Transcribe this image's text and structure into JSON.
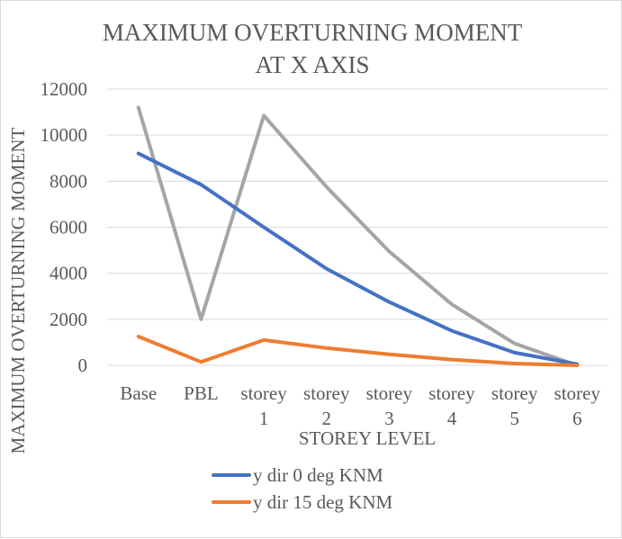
{
  "chart_data": {
    "type": "line",
    "title": [
      "MAXIMUM OVERTURNING MOMENT",
      "AT X AXIS"
    ],
    "xlabel": "STOREY LEVEL",
    "ylabel": "MAXIMUM OVERTURNING MOMENT",
    "categories": [
      [
        "Base"
      ],
      [
        "PBL"
      ],
      [
        "storey",
        "1"
      ],
      [
        "storey",
        "2"
      ],
      [
        "storey",
        "3"
      ],
      [
        "storey",
        "4"
      ],
      [
        "storey",
        "5"
      ],
      [
        "storey",
        "6"
      ]
    ],
    "ylim": [
      0,
      12000
    ],
    "yticks": [
      0,
      2000,
      4000,
      6000,
      8000,
      10000,
      12000
    ],
    "grid": true,
    "legend_position": "bottom",
    "series": [
      {
        "name": "y dir 0 deg KNM",
        "color": "#4472c4",
        "values": [
          9200,
          7850,
          6000,
          4200,
          2750,
          1500,
          550,
          50
        ]
      },
      {
        "name": "y dir 15 deg KNM",
        "color": "#ed7d31",
        "values": [
          1250,
          150,
          1100,
          750,
          480,
          250,
          80,
          0
        ]
      },
      {
        "name": "",
        "color": "#a5a5a5",
        "legend": false,
        "values": [
          11200,
          2000,
          10850,
          7750,
          4950,
          2650,
          950,
          0
        ]
      }
    ]
  }
}
